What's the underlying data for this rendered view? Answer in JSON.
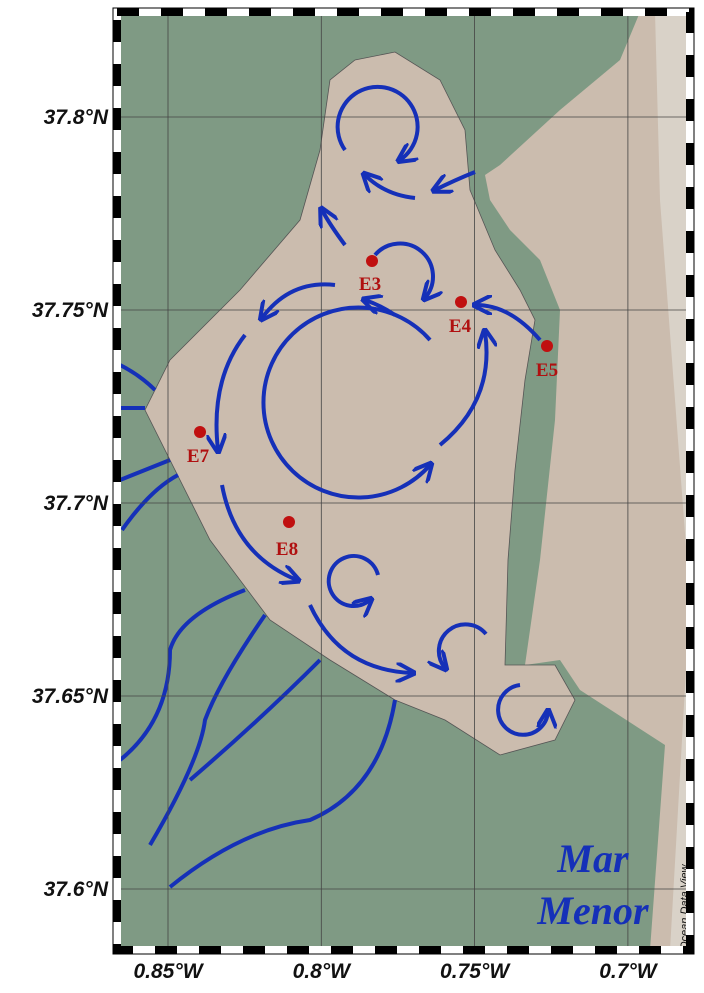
{
  "map": {
    "lat_ticks": [
      {
        "value": 37.8,
        "label": "37.8°N"
      },
      {
        "value": 37.75,
        "label": "37.75°N"
      },
      {
        "value": 37.7,
        "label": "37.7°N"
      },
      {
        "value": 37.65,
        "label": "37.65°N"
      },
      {
        "value": 37.6,
        "label": "37.6°N"
      }
    ],
    "lon_ticks": [
      {
        "value": -0.85,
        "label": "0.85°W"
      },
      {
        "value": -0.8,
        "label": "0.8°W"
      },
      {
        "value": -0.75,
        "label": "0.75°W"
      },
      {
        "value": -0.7,
        "label": "0.7°W"
      }
    ],
    "stations": [
      "E3",
      "E4",
      "E5",
      "E7",
      "E8"
    ],
    "title_lines": [
      "Mar",
      "Menor"
    ],
    "credit": "Ocean Data View"
  }
}
